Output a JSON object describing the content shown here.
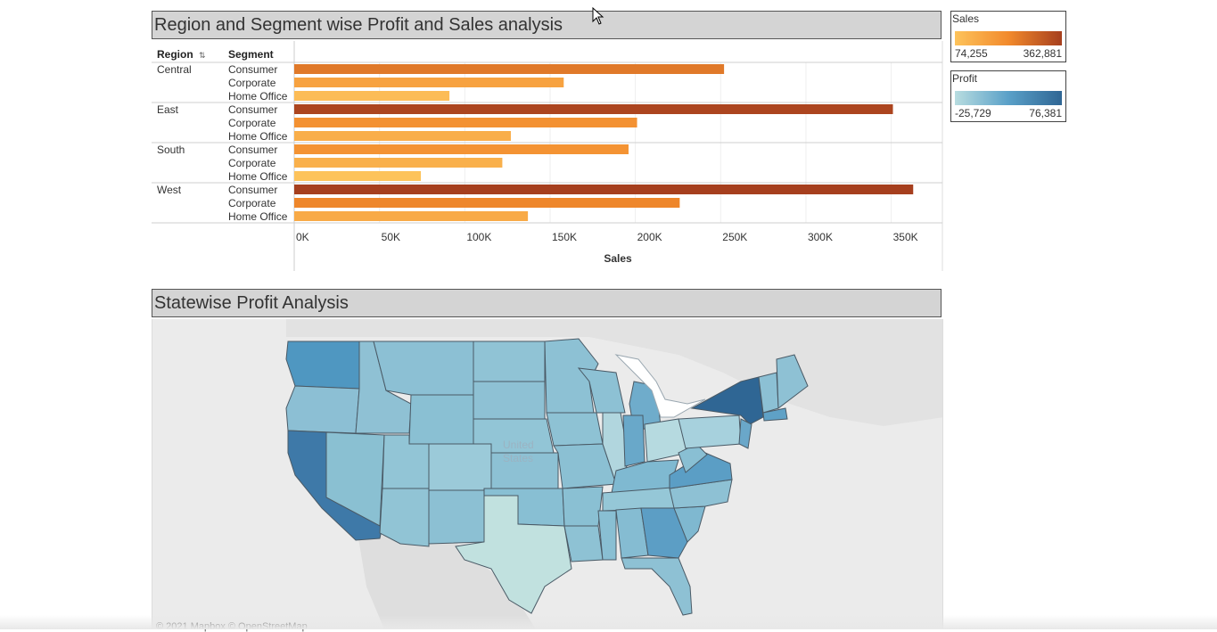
{
  "bar_title": "Region and Segment wise Profit and Sales analysis",
  "map_title": "Statewise Profit Analysis",
  "col_headers": {
    "region": "Region",
    "segment": "Segment",
    "sort_icon": "sort-icon"
  },
  "legend_sales": {
    "title": "Sales",
    "min": "74,255",
    "max": "362,881",
    "color_min": "#fdc35b",
    "color_max": "#a63f1e"
  },
  "legend_profit": {
    "title": "Profit",
    "min": "-25,729",
    "max": "76,381",
    "color_min": "#b8dde0",
    "color_max": "#2f6694"
  },
  "map": {
    "country_label_line1": "United",
    "country_label_line2": "States",
    "copyright": "© 2021 Mapbox © OpenStreetMap"
  },
  "chart_data": {
    "type": "bar",
    "title": "Region and Segment wise Profit and Sales analysis",
    "xlabel": "Sales",
    "ylabel": "",
    "xlim": [
      0,
      380000
    ],
    "ticks": [
      0,
      50000,
      100000,
      150000,
      200000,
      250000,
      300000,
      350000
    ],
    "tick_labels": [
      "0K",
      "50K",
      "100K",
      "150K",
      "200K",
      "250K",
      "300K",
      "350K"
    ],
    "groups": [
      {
        "region": "Central",
        "rows": [
          {
            "segment": "Consumer",
            "sales": 252000
          },
          {
            "segment": "Corporate",
            "sales": 158000
          },
          {
            "segment": "Home Office",
            "sales": 91000
          }
        ]
      },
      {
        "region": "East",
        "rows": [
          {
            "segment": "Consumer",
            "sales": 351000
          },
          {
            "segment": "Corporate",
            "sales": 201000
          },
          {
            "segment": "Home Office",
            "sales": 127000
          }
        ]
      },
      {
        "region": "South",
        "rows": [
          {
            "segment": "Consumer",
            "sales": 196000
          },
          {
            "segment": "Corporate",
            "sales": 122000
          },
          {
            "segment": "Home Office",
            "sales": 74255
          }
        ]
      },
      {
        "region": "West",
        "rows": [
          {
            "segment": "Consumer",
            "sales": 362881
          },
          {
            "segment": "Corporate",
            "sales": 226000
          },
          {
            "segment": "Home Office",
            "sales": 137000
          }
        ]
      }
    ]
  }
}
